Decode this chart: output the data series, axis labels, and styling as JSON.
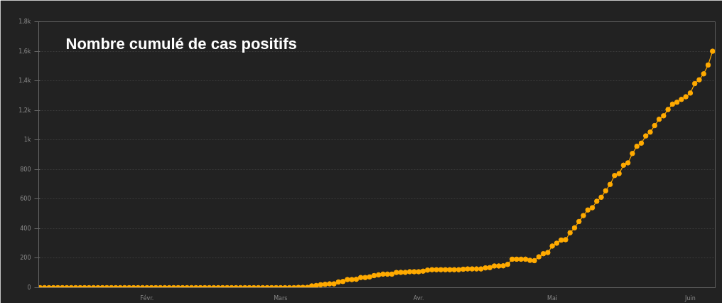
{
  "chart_data": {
    "type": "line",
    "title": "Nombre cumulé de cas positifs",
    "categories": [
      null,
      null,
      null,
      null,
      null,
      null,
      null,
      null,
      null,
      null,
      null,
      null,
      null,
      null,
      null,
      null,
      null,
      null,
      null,
      null,
      null,
      null,
      null,
      null,
      "Févr.",
      null,
      null,
      null,
      null,
      null,
      null,
      null,
      null,
      null,
      null,
      null,
      null,
      null,
      null,
      null,
      null,
      null,
      null,
      null,
      null,
      null,
      null,
      null,
      null,
      null,
      null,
      null,
      null,
      null,
      "Mars",
      null,
      null,
      null,
      null,
      null,
      null,
      null,
      null,
      null,
      null,
      null,
      null,
      null,
      null,
      null,
      null,
      null,
      null,
      null,
      null,
      null,
      null,
      null,
      null,
      null,
      null,
      null,
      null,
      null,
      null,
      "Avr.",
      null,
      null,
      null,
      null,
      null,
      null,
      null,
      null,
      null,
      null,
      null,
      null,
      null,
      null,
      null,
      null,
      null,
      null,
      null,
      null,
      null,
      null,
      null,
      null,
      null,
      null,
      null,
      null,
      null,
      "Mai",
      null,
      null,
      null,
      null,
      null,
      null,
      null,
      null,
      null,
      null,
      null,
      null,
      null,
      null,
      null,
      null,
      null,
      null,
      null,
      null,
      null,
      null,
      null,
      null,
      null,
      null,
      null,
      null,
      null,
      null,
      "Juin",
      null,
      null,
      null,
      null,
      null
    ],
    "series": [
      {
        "color": "#ffaa00",
        "values": [
          0,
          0,
          0,
          0,
          0,
          0,
          0,
          0,
          0,
          0,
          0,
          0,
          0,
          0,
          0,
          0,
          0,
          0,
          0,
          0,
          0,
          0,
          0,
          0,
          0,
          0,
          0,
          0,
          0,
          0,
          0,
          0,
          0,
          0,
          0,
          0,
          0,
          0,
          0,
          0,
          0,
          0,
          0,
          0,
          0,
          0,
          0,
          0,
          0,
          0,
          0,
          0,
          0,
          0,
          0,
          0,
          0,
          0,
          2,
          2,
          2,
          12,
          15,
          20,
          23,
          26,
          26,
          39,
          42,
          55,
          55,
          57,
          69,
          69,
          73,
          82,
          87,
          92,
          92,
          92,
          103,
          104,
          104,
          108,
          108,
          108,
          112,
          119,
          122,
          122,
          122,
          122,
          122,
          122,
          122,
          125,
          127,
          127,
          127,
          127,
          134,
          136,
          147,
          147,
          148,
          158,
          193,
          193,
          193,
          193,
          185,
          183,
          209,
          230,
          238,
          282,
          301,
          322,
          325,
          372,
          405,
          448,
          488,
          526,
          541,
          585,
          612,
          656,
          699,
          759,
          772,
          829,
          845,
          908,
          957,
          978,
          1027,
          1053,
          1097,
          1140,
          1163,
          1206,
          1242,
          1255,
          1274,
          1292,
          1317,
          1381,
          1407,
          1447,
          1507,
          1600
        ]
      }
    ],
    "ylim": [
      0,
      1800
    ],
    "yticks": [
      0,
      200,
      400,
      600,
      800,
      {
        "value": 1000,
        "label": "1k"
      },
      {
        "value": 1200,
        "label": "1,2k"
      },
      {
        "value": 1400,
        "label": "1,4k"
      },
      {
        "value": 1600,
        "label": "1,6k"
      },
      {
        "value": 1800,
        "label": "1,8k"
      }
    ],
    "grid": "y",
    "marker": "circle",
    "line_style": "solid"
  }
}
